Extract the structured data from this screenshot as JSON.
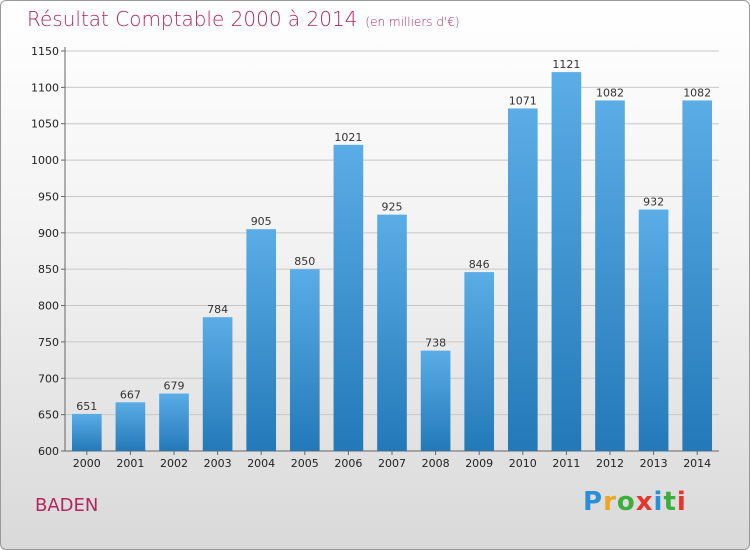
{
  "header": {
    "title": "Résultat Comptable 2000 à 2014",
    "subtitle": "(en milliers d'€)"
  },
  "footer": {
    "place": "BADEN",
    "logo": {
      "letters": [
        "P",
        "r",
        "o",
        "x",
        "i",
        "t",
        "i"
      ],
      "colors": [
        "#2a8fd6",
        "#f0a623",
        "#3cae3c",
        "#e5362b",
        "#2a8fd6",
        "#3cae3c",
        "#e5362b"
      ]
    }
  },
  "chart_data": {
    "type": "bar",
    "title": "Résultat Comptable 2000 à 2014",
    "subtitle": "(en milliers d'€)",
    "xlabel": "",
    "ylabel": "",
    "categories": [
      "2000",
      "2001",
      "2002",
      "2003",
      "2004",
      "2005",
      "2006",
      "2007",
      "2008",
      "2009",
      "2010",
      "2011",
      "2012",
      "2013",
      "2014"
    ],
    "values": [
      651,
      667,
      679,
      784,
      905,
      850,
      1021,
      925,
      738,
      846,
      1071,
      1121,
      1082,
      932,
      1082
    ],
    "ylim": [
      600,
      1150
    ],
    "yticks": [
      600,
      650,
      700,
      750,
      800,
      850,
      900,
      950,
      1000,
      1050,
      1100,
      1150
    ],
    "grid": true,
    "bar_color_top": "#5aade6",
    "bar_color_bottom": "#2379b8"
  }
}
